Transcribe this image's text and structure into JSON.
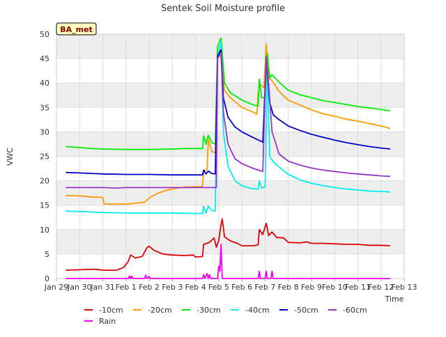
{
  "chart_data": {
    "type": "line",
    "title": "Sentek Soil Moisture profile",
    "xlabel": "Time",
    "ylabel": "VWC",
    "station_label": "BA_met",
    "ylim": [
      0,
      50
    ],
    "yticks": [
      0,
      5,
      10,
      15,
      20,
      25,
      30,
      35,
      40,
      45,
      50
    ],
    "xlim": [
      0,
      15
    ],
    "xticks": [
      {
        "x": 0,
        "label": "Jan 29"
      },
      {
        "x": 1,
        "label": "Jan 30"
      },
      {
        "x": 2,
        "label": "Jan 31"
      },
      {
        "x": 3,
        "label": "Feb 1"
      },
      {
        "x": 4,
        "label": "Feb 2"
      },
      {
        "x": 5,
        "label": "Feb 3"
      },
      {
        "x": 6,
        "label": "Feb 4"
      },
      {
        "x": 7,
        "label": "Feb 5"
      },
      {
        "x": 8,
        "label": "Feb 6"
      },
      {
        "x": 9,
        "label": "Feb 7"
      },
      {
        "x": 10,
        "label": "Feb 8"
      },
      {
        "x": 11,
        "label": "Feb 9"
      },
      {
        "x": 12,
        "label": "Feb 10"
      },
      {
        "x": 13,
        "label": "Feb 11"
      },
      {
        "x": 14,
        "label": "Feb 12"
      },
      {
        "x": 15,
        "label": "Feb 13"
      }
    ],
    "grid": true,
    "legend_position": "bottom",
    "series": [
      {
        "name": "-10cm",
        "color": "#dd0000",
        "points": [
          [
            0.4,
            1.7
          ],
          [
            1.0,
            1.8
          ],
          [
            1.7,
            1.9
          ],
          [
            2.0,
            1.7
          ],
          [
            2.6,
            1.7
          ],
          [
            2.9,
            2.3
          ],
          [
            3.1,
            3.5
          ],
          [
            3.2,
            4.8
          ],
          [
            3.4,
            4.2
          ],
          [
            3.7,
            4.5
          ],
          [
            3.9,
            6.3
          ],
          [
            4.0,
            6.6
          ],
          [
            4.2,
            5.8
          ],
          [
            4.6,
            5.0
          ],
          [
            5.0,
            4.8
          ],
          [
            5.5,
            4.7
          ],
          [
            5.9,
            4.8
          ],
          [
            6.0,
            4.4
          ],
          [
            6.3,
            4.5
          ],
          [
            6.35,
            7.0
          ],
          [
            6.6,
            7.4
          ],
          [
            6.8,
            8.3
          ],
          [
            6.9,
            6.4
          ],
          [
            7.0,
            7.8
          ],
          [
            7.1,
            11.0
          ],
          [
            7.15,
            12.2
          ],
          [
            7.25,
            8.5
          ],
          [
            7.5,
            7.7
          ],
          [
            7.8,
            7.2
          ],
          [
            8.0,
            6.7
          ],
          [
            8.5,
            6.7
          ],
          [
            8.7,
            6.9
          ],
          [
            8.75,
            10.0
          ],
          [
            8.9,
            9.0
          ],
          [
            9.05,
            11.3
          ],
          [
            9.15,
            8.8
          ],
          [
            9.3,
            9.5
          ],
          [
            9.5,
            8.4
          ],
          [
            9.8,
            8.3
          ],
          [
            10.0,
            7.4
          ],
          [
            10.5,
            7.3
          ],
          [
            10.8,
            7.5
          ],
          [
            11.0,
            7.2
          ],
          [
            11.5,
            7.2
          ],
          [
            12.0,
            7.1
          ],
          [
            12.5,
            7.0
          ],
          [
            13.0,
            7.0
          ],
          [
            13.5,
            6.8
          ],
          [
            14.0,
            6.8
          ],
          [
            14.4,
            6.7
          ]
        ]
      },
      {
        "name": "-20cm",
        "color": "#ff9900",
        "points": [
          [
            0.4,
            17.0
          ],
          [
            1.0,
            16.9
          ],
          [
            1.5,
            16.7
          ],
          [
            2.0,
            16.6
          ],
          [
            2.05,
            15.3
          ],
          [
            2.5,
            15.2
          ],
          [
            3.0,
            15.2
          ],
          [
            3.4,
            15.4
          ],
          [
            3.8,
            15.6
          ],
          [
            4.0,
            16.5
          ],
          [
            4.4,
            17.5
          ],
          [
            4.8,
            18.1
          ],
          [
            5.2,
            18.5
          ],
          [
            5.6,
            18.7
          ],
          [
            6.0,
            18.8
          ],
          [
            6.3,
            18.8
          ],
          [
            6.35,
            22.0
          ],
          [
            6.5,
            22.3
          ],
          [
            6.55,
            28.5
          ],
          [
            6.7,
            26.0
          ],
          [
            6.85,
            25.7
          ],
          [
            6.95,
            46.0
          ],
          [
            7.05,
            47.0
          ],
          [
            7.25,
            38.5
          ],
          [
            7.5,
            37.0
          ],
          [
            8.0,
            35.0
          ],
          [
            8.5,
            34.0
          ],
          [
            8.65,
            33.6
          ],
          [
            8.7,
            38.0
          ],
          [
            8.8,
            39.7
          ],
          [
            8.95,
            39.0
          ],
          [
            9.05,
            48.0
          ],
          [
            9.15,
            41.0
          ],
          [
            9.3,
            40.5
          ],
          [
            9.6,
            38.3
          ],
          [
            10.0,
            36.5
          ],
          [
            10.5,
            35.5
          ],
          [
            11.0,
            34.5
          ],
          [
            11.5,
            33.7
          ],
          [
            12.0,
            33.2
          ],
          [
            12.5,
            32.6
          ],
          [
            13.0,
            32.2
          ],
          [
            13.5,
            31.7
          ],
          [
            14.0,
            31.2
          ],
          [
            14.4,
            30.7
          ]
        ]
      },
      {
        "name": "-30cm",
        "color": "#00ee00",
        "points": [
          [
            0.4,
            27.0
          ],
          [
            1.0,
            26.8
          ],
          [
            1.5,
            26.6
          ],
          [
            2.0,
            26.5
          ],
          [
            3.0,
            26.4
          ],
          [
            4.0,
            26.4
          ],
          [
            5.0,
            26.5
          ],
          [
            5.5,
            26.6
          ],
          [
            6.3,
            26.6
          ],
          [
            6.35,
            29.2
          ],
          [
            6.45,
            27.5
          ],
          [
            6.55,
            29.3
          ],
          [
            6.7,
            27.8
          ],
          [
            6.85,
            27.5
          ],
          [
            6.95,
            47.5
          ],
          [
            7.1,
            49.2
          ],
          [
            7.25,
            40.0
          ],
          [
            7.5,
            38.0
          ],
          [
            8.0,
            36.5
          ],
          [
            8.5,
            35.5
          ],
          [
            8.7,
            35.3
          ],
          [
            8.75,
            40.8
          ],
          [
            8.85,
            37.0
          ],
          [
            9.0,
            37.1
          ],
          [
            9.1,
            46.0
          ],
          [
            9.2,
            41.0
          ],
          [
            9.3,
            41.7
          ],
          [
            9.6,
            40.2
          ],
          [
            10.0,
            38.5
          ],
          [
            10.5,
            37.6
          ],
          [
            11.0,
            37.0
          ],
          [
            11.5,
            36.4
          ],
          [
            12.0,
            36.0
          ],
          [
            12.5,
            35.6
          ],
          [
            13.0,
            35.2
          ],
          [
            13.5,
            34.9
          ],
          [
            14.0,
            34.6
          ],
          [
            14.4,
            34.3
          ]
        ]
      },
      {
        "name": "-40cm",
        "color": "#00eeee",
        "points": [
          [
            0.4,
            13.8
          ],
          [
            1.0,
            13.7
          ],
          [
            1.5,
            13.6
          ],
          [
            2.0,
            13.5
          ],
          [
            3.0,
            13.4
          ],
          [
            4.0,
            13.4
          ],
          [
            5.0,
            13.4
          ],
          [
            6.0,
            13.3
          ],
          [
            6.3,
            13.3
          ],
          [
            6.35,
            14.8
          ],
          [
            6.45,
            13.4
          ],
          [
            6.55,
            14.8
          ],
          [
            6.7,
            13.9
          ],
          [
            6.85,
            13.8
          ],
          [
            6.95,
            45.0
          ],
          [
            7.1,
            48.5
          ],
          [
            7.2,
            30.0
          ],
          [
            7.4,
            23.0
          ],
          [
            7.7,
            20.0
          ],
          [
            8.0,
            19.0
          ],
          [
            8.4,
            18.4
          ],
          [
            8.7,
            18.3
          ],
          [
            8.75,
            20.0
          ],
          [
            8.85,
            18.5
          ],
          [
            9.0,
            18.7
          ],
          [
            9.1,
            43.0
          ],
          [
            9.2,
            25.0
          ],
          [
            9.35,
            23.9
          ],
          [
            9.6,
            22.8
          ],
          [
            10.0,
            21.3
          ],
          [
            10.5,
            20.2
          ],
          [
            11.0,
            19.5
          ],
          [
            11.5,
            19.0
          ],
          [
            12.0,
            18.6
          ],
          [
            12.5,
            18.3
          ],
          [
            13.0,
            18.1
          ],
          [
            13.5,
            17.9
          ],
          [
            14.0,
            17.8
          ],
          [
            14.4,
            17.7
          ]
        ]
      },
      {
        "name": "-50cm",
        "color": "#0000cc",
        "points": [
          [
            0.4,
            21.7
          ],
          [
            1.0,
            21.6
          ],
          [
            1.5,
            21.5
          ],
          [
            2.0,
            21.4
          ],
          [
            3.0,
            21.3
          ],
          [
            4.0,
            21.3
          ],
          [
            5.0,
            21.2
          ],
          [
            6.0,
            21.2
          ],
          [
            6.3,
            21.2
          ],
          [
            6.35,
            22.2
          ],
          [
            6.45,
            21.4
          ],
          [
            6.55,
            22.0
          ],
          [
            6.7,
            21.5
          ],
          [
            6.85,
            21.4
          ],
          [
            6.95,
            45.5
          ],
          [
            7.1,
            46.8
          ],
          [
            7.2,
            37.0
          ],
          [
            7.4,
            33.0
          ],
          [
            7.7,
            31.0
          ],
          [
            8.0,
            30.0
          ],
          [
            8.5,
            28.8
          ],
          [
            8.9,
            27.9
          ],
          [
            9.05,
            45.0
          ],
          [
            9.2,
            36.0
          ],
          [
            9.35,
            33.5
          ],
          [
            9.6,
            32.5
          ],
          [
            10.0,
            31.2
          ],
          [
            10.5,
            30.3
          ],
          [
            11.0,
            29.5
          ],
          [
            11.5,
            28.9
          ],
          [
            12.0,
            28.3
          ],
          [
            12.5,
            27.8
          ],
          [
            13.0,
            27.4
          ],
          [
            13.5,
            27.0
          ],
          [
            14.0,
            26.7
          ],
          [
            14.4,
            26.5
          ]
        ]
      },
      {
        "name": "-60cm",
        "color": "#9933cc",
        "points": [
          [
            0.4,
            18.6
          ],
          [
            1.0,
            18.6
          ],
          [
            2.0,
            18.6
          ],
          [
            2.5,
            18.5
          ],
          [
            3.0,
            18.6
          ],
          [
            4.0,
            18.6
          ],
          [
            5.0,
            18.6
          ],
          [
            6.0,
            18.6
          ],
          [
            6.9,
            18.6
          ],
          [
            6.95,
            45.0
          ],
          [
            7.1,
            46.2
          ],
          [
            7.2,
            34.0
          ],
          [
            7.4,
            27.5
          ],
          [
            7.7,
            24.5
          ],
          [
            8.0,
            23.5
          ],
          [
            8.5,
            22.5
          ],
          [
            8.9,
            21.9
          ],
          [
            9.05,
            45.5
          ],
          [
            9.15,
            40.0
          ],
          [
            9.3,
            30.0
          ],
          [
            9.6,
            25.5
          ],
          [
            10.0,
            24.0
          ],
          [
            10.5,
            23.2
          ],
          [
            11.0,
            22.6
          ],
          [
            11.5,
            22.2
          ],
          [
            12.0,
            21.9
          ],
          [
            12.5,
            21.6
          ],
          [
            13.0,
            21.4
          ],
          [
            13.5,
            21.2
          ],
          [
            14.0,
            21.0
          ],
          [
            14.4,
            20.9
          ]
        ]
      },
      {
        "name": "Rain",
        "color": "#ee00ee",
        "points": [
          [
            0.4,
            0
          ],
          [
            3.1,
            0
          ],
          [
            3.15,
            0.5
          ],
          [
            3.2,
            0
          ],
          [
            3.25,
            0.5
          ],
          [
            3.3,
            0
          ],
          [
            3.8,
            0
          ],
          [
            3.85,
            0.7
          ],
          [
            3.9,
            0
          ],
          [
            4.0,
            0.4
          ],
          [
            4.05,
            0
          ],
          [
            6.3,
            0
          ],
          [
            6.35,
            0.8
          ],
          [
            6.4,
            0
          ],
          [
            6.5,
            1.0
          ],
          [
            6.55,
            0
          ],
          [
            6.6,
            0.8
          ],
          [
            6.65,
            0
          ],
          [
            6.95,
            0
          ],
          [
            7.0,
            2.5
          ],
          [
            7.05,
            1.5
          ],
          [
            7.1,
            7.0
          ],
          [
            7.15,
            0
          ],
          [
            8.7,
            0
          ],
          [
            8.75,
            1.5
          ],
          [
            8.8,
            0
          ],
          [
            9.0,
            0
          ],
          [
            9.05,
            1.5
          ],
          [
            9.1,
            0
          ],
          [
            9.25,
            0
          ],
          [
            9.3,
            1.5
          ],
          [
            9.35,
            0
          ],
          [
            14.4,
            0
          ]
        ]
      }
    ]
  }
}
